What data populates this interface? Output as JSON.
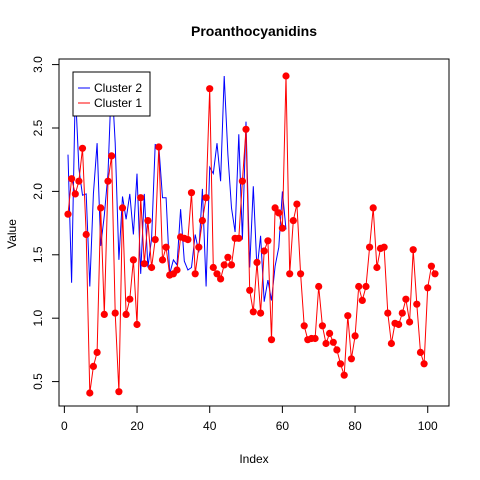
{
  "chart_data": {
    "type": "line",
    "title": "Proanthocyanidins",
    "xlabel": "Index",
    "ylabel": "Value",
    "xlim": [
      1,
      102
    ],
    "ylim": [
      0.41,
      2.91
    ],
    "xticks": [
      0,
      20,
      40,
      60,
      80,
      100
    ],
    "yticks": [
      0.5,
      1.0,
      1.5,
      2.0,
      2.5,
      3.0
    ],
    "xtick_labels": [
      "0",
      "20",
      "40",
      "60",
      "80",
      "100"
    ],
    "ytick_labels": [
      "0.5",
      "1.0",
      "1.5",
      "2.0",
      "2.5",
      "3.0"
    ],
    "legend": {
      "position": "top-left",
      "entries": [
        "Cluster 2",
        "Cluster 1"
      ]
    },
    "series": [
      {
        "name": "Cluster 2",
        "color": "#0000ff",
        "marker": "none",
        "x": [
          1,
          2,
          3,
          4,
          5,
          6,
          7,
          8,
          9,
          10,
          11,
          12,
          13,
          14,
          15,
          16,
          17,
          18,
          19,
          20,
          21,
          22,
          23,
          24,
          25,
          26,
          27,
          28,
          29,
          30,
          31,
          32,
          33,
          34,
          35,
          36,
          37,
          38,
          39,
          40,
          41,
          42,
          43,
          44,
          45,
          46,
          47,
          48,
          49,
          50,
          51,
          52,
          53,
          54,
          55,
          56,
          57,
          58,
          59,
          60,
          61
        ],
        "y": [
          2.29,
          1.28,
          2.81,
          2.18,
          1.97,
          1.98,
          1.25,
          1.98,
          2.38,
          1.57,
          1.81,
          2.14,
          2.91,
          2.38,
          1.46,
          1.96,
          1.78,
          1.98,
          1.66,
          2.14,
          1.35,
          1.98,
          1.4,
          1.63,
          2.37,
          2.36,
          1.95,
          1.95,
          1.35,
          1.46,
          1.42,
          1.86,
          1.45,
          1.38,
          1.4,
          1.66,
          1.52,
          2.02,
          1.25,
          2.19,
          2.14,
          2.38,
          2.08,
          2.91,
          2.29,
          1.87,
          1.68,
          2.45,
          1.62,
          2.55,
          1.4,
          2.04,
          1.38,
          1.65,
          1.13,
          1.3,
          1.14,
          1.41,
          1.56,
          2.0,
          1.7
        ]
      },
      {
        "name": "Cluster 1",
        "color": "#ff0000",
        "marker": "circle",
        "x": [
          1,
          2,
          3,
          4,
          5,
          6,
          7,
          8,
          9,
          10,
          11,
          12,
          13,
          14,
          15,
          16,
          17,
          18,
          19,
          20,
          21,
          22,
          23,
          24,
          25,
          26,
          27,
          28,
          29,
          30,
          31,
          32,
          33,
          34,
          35,
          36,
          37,
          38,
          39,
          40,
          41,
          42,
          43,
          44,
          45,
          46,
          47,
          48,
          49,
          50,
          51,
          52,
          53,
          54,
          55,
          56,
          57,
          58,
          59,
          60,
          61,
          62,
          63,
          64,
          65,
          66,
          67,
          68,
          69,
          70,
          71,
          72,
          73,
          74,
          75,
          76,
          77,
          78,
          79,
          80,
          81,
          82,
          83,
          84,
          85,
          86,
          87,
          88,
          89,
          90,
          91,
          92,
          93,
          94,
          95,
          96,
          97,
          98,
          99,
          100,
          101,
          102
        ],
        "y": [
          1.82,
          2.1,
          1.98,
          2.08,
          2.34,
          1.66,
          0.41,
          0.62,
          0.73,
          1.87,
          1.03,
          2.08,
          2.28,
          1.04,
          0.42,
          1.87,
          1.03,
          1.15,
          1.46,
          0.95,
          1.95,
          1.43,
          1.77,
          1.4,
          1.62,
          2.35,
          1.46,
          1.56,
          1.34,
          1.35,
          1.38,
          1.64,
          1.63,
          1.62,
          1.99,
          1.35,
          1.56,
          1.77,
          1.95,
          2.81,
          1.4,
          1.35,
          1.31,
          1.42,
          1.48,
          1.42,
          1.63,
          1.63,
          2.08,
          2.49,
          1.22,
          1.05,
          1.44,
          1.04,
          1.53,
          1.61,
          0.83,
          1.87,
          1.83,
          1.71,
          2.91,
          1.35,
          1.77,
          1.9,
          1.35,
          0.94,
          0.83,
          0.84,
          0.84,
          1.25,
          0.94,
          0.8,
          0.88,
          0.81,
          0.75,
          0.64,
          0.55,
          1.02,
          0.68,
          0.86,
          1.25,
          1.14,
          1.25,
          1.56,
          1.87,
          1.4,
          1.55,
          1.56,
          1.04,
          0.8,
          0.96,
          0.95,
          1.04,
          1.15,
          0.97,
          1.54,
          1.11,
          0.73,
          0.64,
          1.24,
          1.41,
          1.35
        ]
      }
    ]
  }
}
